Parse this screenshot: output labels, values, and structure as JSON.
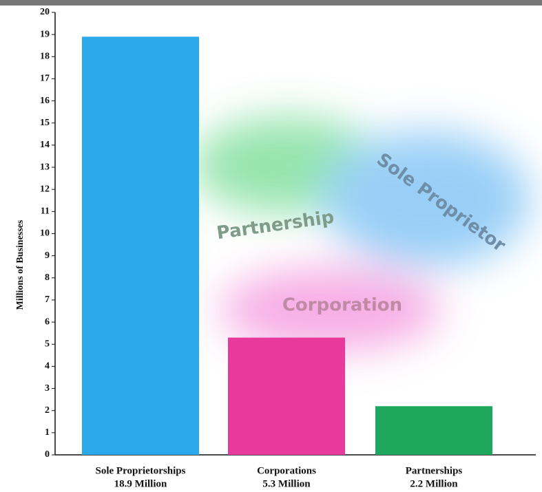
{
  "chart_data": {
    "type": "bar",
    "categories": [
      "Sole Proprietorships",
      "Corporations",
      "Partnerships"
    ],
    "values": [
      18.9,
      5.3,
      2.2
    ],
    "value_labels": [
      "18.9 Million",
      "5.3 Million",
      "2.2 Million"
    ],
    "colors": [
      "#2aa9ea",
      "#e8399c",
      "#1ea85e"
    ],
    "y_label": "Millions of Businesses",
    "ylim": [
      0,
      20
    ],
    "yticks": [
      0,
      1,
      2,
      3,
      4,
      5,
      6,
      7,
      8,
      9,
      10,
      11,
      12,
      13,
      14,
      15,
      16,
      17,
      18,
      19,
      20
    ],
    "annotations": [
      "Sole Proprietor",
      "Partnership",
      "Corporation"
    ]
  }
}
